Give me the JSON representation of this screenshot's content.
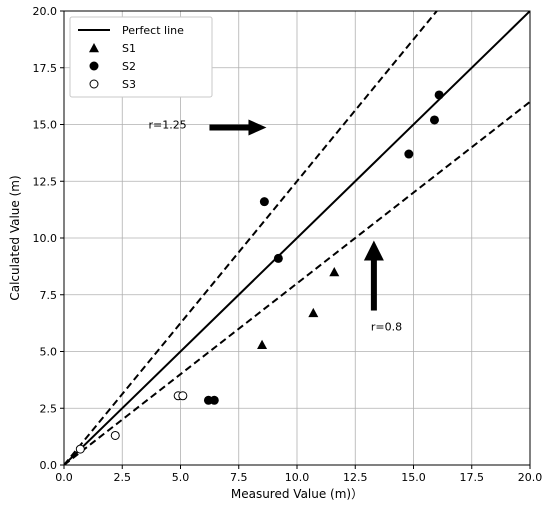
{
  "chart_data": {
    "type": "scatter",
    "title": "",
    "xlabel": "Measured Value (m)）",
    "ylabel": "Calculated Value (m)",
    "xlim": [
      0,
      20
    ],
    "ylim": [
      0,
      20
    ],
    "grid": true,
    "xticks": [
      "0.0",
      "2.5",
      "5.0",
      "7.5",
      "10.0",
      "12.5",
      "15.0",
      "17.5",
      "20.0"
    ],
    "yticks": [
      "0.0",
      "2.5",
      "5.0",
      "7.5",
      "10.0",
      "12.5",
      "15.0",
      "17.5",
      "20.0"
    ],
    "legend": {
      "placement": "top-left",
      "entries": [
        "Perfect line",
        "S1",
        "S2",
        "S3"
      ]
    },
    "lines": [
      {
        "name": "Perfect line",
        "slope": 1.0,
        "style": "solid"
      },
      {
        "name": "r=1.25",
        "slope": 1.25,
        "style": "dashed"
      },
      {
        "name": "r=0.8",
        "slope": 0.8,
        "style": "dashed"
      }
    ],
    "series": [
      {
        "name": "S1",
        "marker": "triangle",
        "points": [
          {
            "x": 8.5,
            "y": 5.3
          },
          {
            "x": 10.7,
            "y": 6.7
          },
          {
            "x": 11.6,
            "y": 8.5
          }
        ]
      },
      {
        "name": "S2",
        "marker": "filled-circle",
        "points": [
          {
            "x": 6.2,
            "y": 2.85
          },
          {
            "x": 6.45,
            "y": 2.85
          },
          {
            "x": 8.6,
            "y": 11.6
          },
          {
            "x": 9.2,
            "y": 9.1
          },
          {
            "x": 14.8,
            "y": 13.7
          },
          {
            "x": 15.9,
            "y": 15.2
          },
          {
            "x": 16.1,
            "y": 16.3
          }
        ]
      },
      {
        "name": "S3",
        "marker": "open-circle",
        "points": [
          {
            "x": 0.7,
            "y": 0.7
          },
          {
            "x": 2.2,
            "y": 1.3
          },
          {
            "x": 4.9,
            "y": 3.05
          },
          {
            "x": 5.1,
            "y": 3.05
          }
        ]
      }
    ],
    "annotations": [
      {
        "text": "r=1.25",
        "x": 6.2,
        "y": 15.0,
        "arrow": "right"
      },
      {
        "text": "r=0.8",
        "x": 13.3,
        "y": 6.1,
        "arrow": "up"
      }
    ]
  }
}
